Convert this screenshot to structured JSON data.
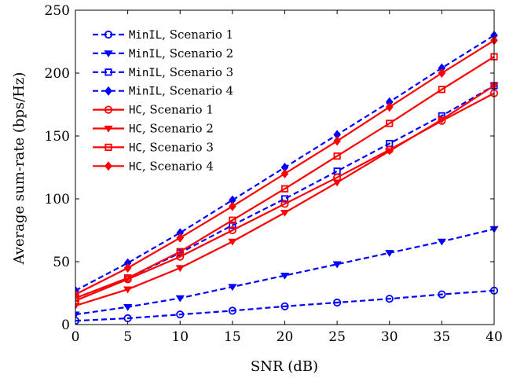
{
  "chart_data": {
    "type": "line",
    "title": "",
    "xlabel": "SNR (dB)",
    "ylabel": "Average sum-rate (bps/Hz)",
    "xlim": [
      0,
      40
    ],
    "ylim": [
      0,
      250
    ],
    "grid": false,
    "legend_position": "top-left",
    "x_ticks": [
      "0",
      "5",
      "10",
      "15",
      "20",
      "25",
      "30",
      "35",
      "40"
    ],
    "y_ticks": [
      "0",
      "50",
      "100",
      "150",
      "200",
      "250"
    ],
    "x": [
      0,
      5,
      10,
      15,
      20,
      25,
      30,
      35,
      40
    ],
    "series": [
      {
        "name_code": "MinIL",
        "name_text": ", Scenario 1",
        "color": "#0000ff",
        "style": "dashed",
        "marker": "circle",
        "values": [
          3,
          5,
          8,
          11,
          14.5,
          17.5,
          20.5,
          24,
          27
        ]
      },
      {
        "name_code": "MinIL",
        "name_text": ", Scenario 2",
        "color": "#0000ff",
        "style": "dashed",
        "marker": "triangle-down",
        "values": [
          8,
          14,
          21,
          30,
          39,
          48,
          57,
          66,
          76
        ]
      },
      {
        "name_code": "MinIL",
        "name_text": ", Scenario 3",
        "color": "#0000ff",
        "style": "dashed",
        "marker": "square",
        "values": [
          21,
          37,
          57,
          79,
          100,
          122,
          144,
          166,
          190
        ]
      },
      {
        "name_code": "MinIL",
        "name_text": ", Scenario 4",
        "color": "#0000ff",
        "style": "dashed",
        "marker": "diamond",
        "values": [
          27,
          49,
          73,
          99,
          125,
          151,
          177,
          204,
          230
        ]
      },
      {
        "name_code": "HC",
        "name_text": ", Scenario 1",
        "color": "#ff0000",
        "style": "solid",
        "marker": "circle",
        "values": [
          19,
          36,
          54,
          75,
          96,
          117,
          139,
          162,
          184
        ]
      },
      {
        "name_code": "HC",
        "name_text": ", Scenario 2",
        "color": "#ff0000",
        "style": "solid",
        "marker": "triangle-down",
        "values": [
          15,
          28,
          45,
          66,
          89,
          113,
          138,
          163,
          190
        ]
      },
      {
        "name_code": "HC",
        "name_text": ", Scenario 3",
        "color": "#ff0000",
        "style": "solid",
        "marker": "square",
        "values": [
          21,
          37,
          58,
          83,
          108,
          134,
          160,
          187,
          213
        ]
      },
      {
        "name_code": "HC",
        "name_text": ", Scenario 4",
        "color": "#ff0000",
        "style": "solid",
        "marker": "diamond",
        "values": [
          24,
          45,
          69,
          94,
          120,
          146,
          173,
          200,
          226
        ]
      }
    ]
  }
}
